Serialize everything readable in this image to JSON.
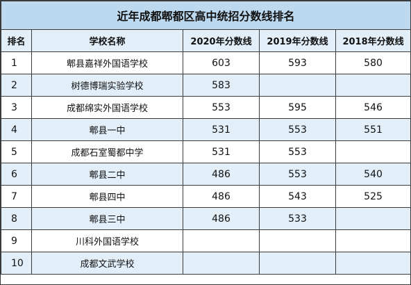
{
  "title": "近年成都郫都区高中统招分数线排名",
  "headers": {
    "rank": "排名",
    "school": "学校名称",
    "y2020": "2020年分数线",
    "y2019": "2019年分数线",
    "y2018": "2018年分数线"
  },
  "rows": [
    {
      "rank": "1",
      "school": "郫县嘉祥外国语学校",
      "y2020": "603",
      "y2019": "593",
      "y2018": "580"
    },
    {
      "rank": "2",
      "school": "树德博瑞实验学校",
      "y2020": "583",
      "y2019": "",
      "y2018": ""
    },
    {
      "rank": "3",
      "school": "成都绵实外国语学校",
      "y2020": "553",
      "y2019": "595",
      "y2018": "546"
    },
    {
      "rank": "4",
      "school": "郫县一中",
      "y2020": "531",
      "y2019": "553",
      "y2018": "551"
    },
    {
      "rank": "5",
      "school": "成都石室蜀都中学",
      "y2020": "531",
      "y2019": "553",
      "y2018": ""
    },
    {
      "rank": "6",
      "school": "郫县二中",
      "y2020": "486",
      "y2019": "553",
      "y2018": "540"
    },
    {
      "rank": "7",
      "school": "郫县四中",
      "y2020": "486",
      "y2019": "543",
      "y2018": "525"
    },
    {
      "rank": "8",
      "school": "郫县三中",
      "y2020": "486",
      "y2019": "533",
      "y2018": ""
    },
    {
      "rank": "9",
      "school": "川科外国语学校",
      "y2020": "",
      "y2019": "",
      "y2018": ""
    },
    {
      "rank": "10",
      "school": "成都文武学校",
      "y2020": "",
      "y2019": "",
      "y2018": ""
    }
  ],
  "colors": {
    "title_bg": "#bcd9ef",
    "header_bg": "#e2eef8",
    "alt_row_bg": "#e2eef8",
    "border": "#3a3a3a"
  }
}
